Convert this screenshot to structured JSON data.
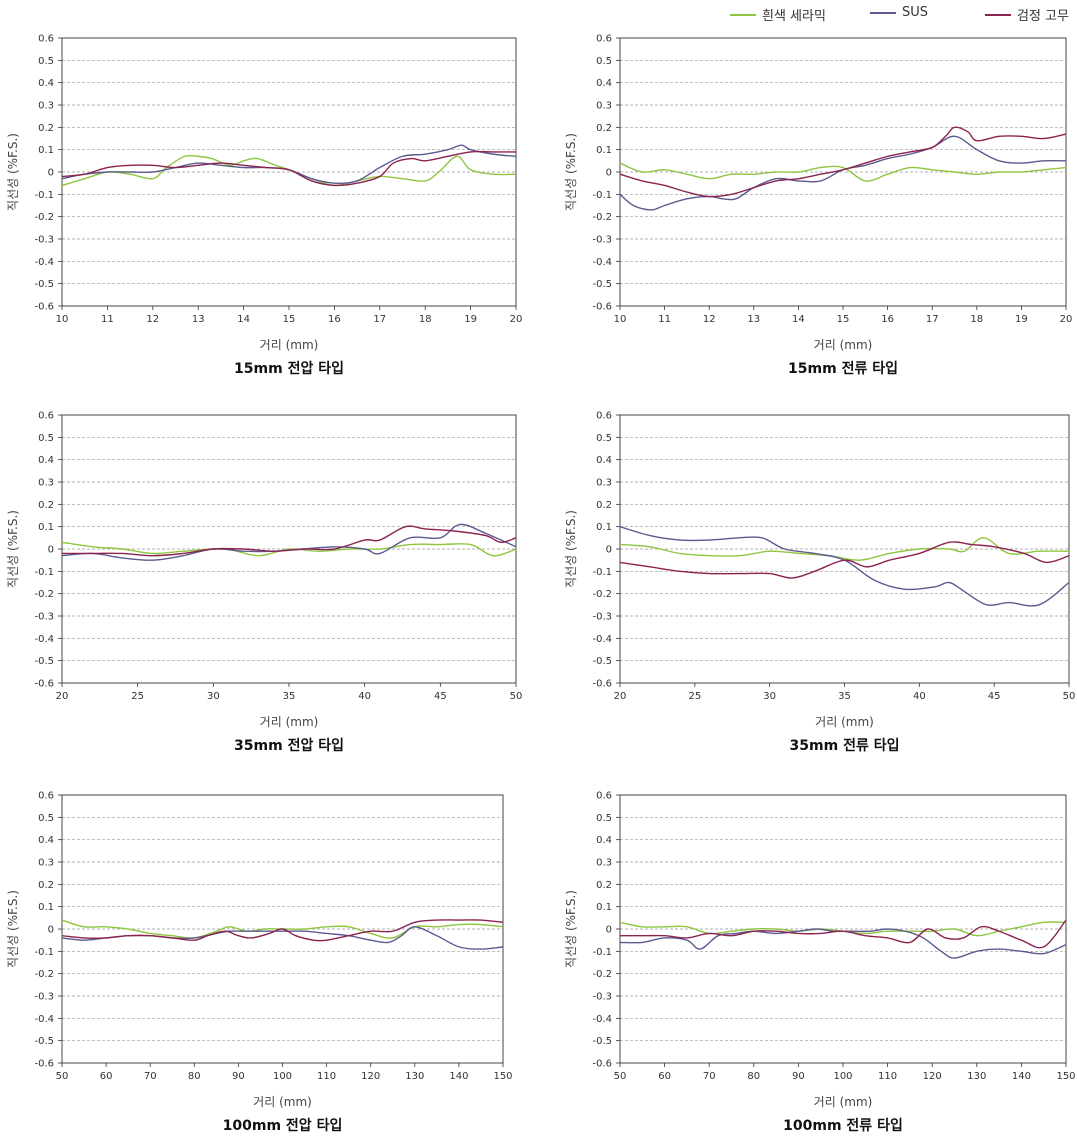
{
  "legend": [
    {
      "name": "흰색 세라믹",
      "color": "#8dc63f"
    },
    {
      "name": "SUS",
      "color": "#5c5a8f"
    },
    {
      "name": "검정 고무",
      "color": "#8b2252"
    }
  ],
  "colors": {
    "ceramic": "#8dc63f",
    "sus": "#5c5a8f",
    "rubber": "#8b2252",
    "grid": "#999999"
  },
  "chart_data": [
    {
      "type": "line",
      "title": "15mm 전압 타입",
      "xlabel": "거리 (mm)",
      "ylabel": "직선성 (%F.S.)",
      "xlim": [
        10,
        20
      ],
      "ylim": [
        -0.6,
        0.6
      ],
      "xticks": [
        "10",
        "11",
        "12",
        "13",
        "14",
        "15",
        "16",
        "17",
        "18",
        "19",
        "20"
      ],
      "yticks": [
        "0.6",
        "0.5",
        "0.4",
        "0.3",
        "0.2",
        "0.1",
        "0",
        "-0.1",
        "-0.2",
        "-0.3",
        "-0.4",
        "-0.5",
        "-0.6"
      ],
      "grid": true,
      "series": [
        {
          "name": "흰색 세라믹",
          "x": [
            10,
            10.5,
            11,
            11.5,
            12,
            12.3,
            12.7,
            13,
            13.3,
            13.7,
            14,
            14.3,
            14.7,
            15,
            15.5,
            16,
            16.5,
            17,
            17.5,
            18,
            18.3,
            18.7,
            19,
            19.5,
            20
          ],
          "y": [
            -0.06,
            -0.03,
            0.0,
            -0.01,
            -0.03,
            0.02,
            0.07,
            0.07,
            0.06,
            0.03,
            0.05,
            0.06,
            0.03,
            0.01,
            -0.03,
            -0.06,
            -0.04,
            -0.02,
            -0.03,
            -0.04,
            0.0,
            0.07,
            0.01,
            -0.01,
            -0.01
          ]
        },
        {
          "name": "SUS",
          "x": [
            10,
            10.5,
            11,
            11.5,
            12,
            12.5,
            13,
            13.5,
            14,
            14.5,
            15,
            15.5,
            16,
            16.5,
            17,
            17.5,
            18,
            18.5,
            18.8,
            19,
            19.5,
            20
          ],
          "y": [
            -0.03,
            -0.01,
            0.0,
            0.0,
            0.0,
            0.02,
            0.04,
            0.03,
            0.02,
            0.02,
            0.01,
            -0.03,
            -0.05,
            -0.04,
            0.02,
            0.07,
            0.08,
            0.1,
            0.12,
            0.1,
            0.08,
            0.07
          ]
        },
        {
          "name": "검정 고무",
          "x": [
            10,
            10.5,
            11,
            11.5,
            12,
            12.5,
            13,
            13.5,
            14,
            14.5,
            15,
            15.5,
            16,
            16.5,
            17,
            17.3,
            17.7,
            18,
            18.5,
            19,
            19.5,
            20
          ],
          "y": [
            -0.02,
            -0.01,
            0.02,
            0.03,
            0.03,
            0.02,
            0.03,
            0.04,
            0.03,
            0.02,
            0.01,
            -0.04,
            -0.06,
            -0.05,
            -0.02,
            0.04,
            0.06,
            0.05,
            0.07,
            0.09,
            0.09,
            0.09
          ]
        }
      ]
    },
    {
      "type": "line",
      "title": "15mm 전류 타입",
      "xlabel": "거리 (mm)",
      "ylabel": "직선성 (%F.S.)",
      "xlim": [
        10,
        20
      ],
      "ylim": [
        -0.6,
        0.6
      ],
      "xticks": [
        "10",
        "11",
        "12",
        "13",
        "14",
        "15",
        "16",
        "17",
        "18",
        "19",
        "20"
      ],
      "yticks": [
        "0.6",
        "0.5",
        "0.4",
        "0.3",
        "0.2",
        "0.1",
        "0",
        "-0.1",
        "-0.2",
        "-0.3",
        "-0.4",
        "-0.5",
        "-0.6"
      ],
      "grid": true,
      "series": [
        {
          "name": "흰색 세라믹",
          "x": [
            10,
            10.5,
            11,
            11.5,
            12,
            12.5,
            13,
            13.5,
            14,
            14.5,
            15,
            15.5,
            16,
            16.5,
            17,
            17.5,
            18,
            18.5,
            19,
            19.5,
            20
          ],
          "y": [
            0.04,
            0.0,
            0.01,
            -0.01,
            -0.03,
            -0.01,
            -0.01,
            0.0,
            0.0,
            0.02,
            0.02,
            -0.04,
            -0.01,
            0.02,
            0.01,
            0.0,
            -0.01,
            0.0,
            0.0,
            0.01,
            0.02
          ]
        },
        {
          "name": "SUS",
          "x": [
            10,
            10.3,
            10.7,
            11,
            11.5,
            12,
            12.3,
            12.6,
            13,
            13.5,
            14,
            14.5,
            15,
            15.5,
            16,
            16.5,
            17,
            17.5,
            18,
            18.5,
            19,
            19.5,
            20
          ],
          "y": [
            -0.1,
            -0.15,
            -0.17,
            -0.15,
            -0.12,
            -0.11,
            -0.12,
            -0.12,
            -0.07,
            -0.03,
            -0.04,
            -0.04,
            0.01,
            0.03,
            0.06,
            0.08,
            0.11,
            0.16,
            0.1,
            0.05,
            0.04,
            0.05,
            0.05
          ]
        },
        {
          "name": "검정 고무",
          "x": [
            10,
            10.5,
            11,
            11.5,
            12,
            12.5,
            13,
            13.5,
            14,
            14.5,
            15,
            15.5,
            16,
            16.5,
            17,
            17.3,
            17.5,
            17.8,
            18,
            18.5,
            19,
            19.5,
            20
          ],
          "y": [
            -0.01,
            -0.04,
            -0.06,
            -0.09,
            -0.11,
            -0.1,
            -0.07,
            -0.04,
            -0.03,
            -0.01,
            0.01,
            0.04,
            0.07,
            0.09,
            0.11,
            0.16,
            0.2,
            0.18,
            0.14,
            0.16,
            0.16,
            0.15,
            0.17
          ]
        }
      ]
    },
    {
      "type": "line",
      "title": "35mm 전압 타입",
      "xlabel": "거리 (mm)",
      "ylabel": "직선성 (%F.S.)",
      "xlim": [
        20,
        50
      ],
      "ylim": [
        -0.6,
        0.6
      ],
      "xticks": [
        "20",
        "25",
        "30",
        "35",
        "40",
        "45",
        "50"
      ],
      "yticks": [
        "0.6",
        "0.5",
        "0.4",
        "0.3",
        "0.2",
        "0.1",
        "0",
        "-0.1",
        "-0.2",
        "-0.3",
        "-0.4",
        "-0.5",
        "-0.6"
      ],
      "grid": true,
      "series": [
        {
          "name": "흰색 세라믹",
          "x": [
            20,
            22,
            24,
            26,
            28,
            30,
            31,
            33,
            35,
            37,
            39,
            41,
            43,
            45,
            47,
            48.5,
            50
          ],
          "y": [
            0.03,
            0.01,
            0.0,
            -0.02,
            -0.01,
            0.0,
            0.0,
            -0.03,
            0.0,
            -0.01,
            0.0,
            0.0,
            0.02,
            0.02,
            0.02,
            -0.03,
            0.0
          ]
        },
        {
          "name": "SUS",
          "x": [
            20,
            22,
            24,
            26,
            28,
            30,
            32,
            34,
            36,
            38,
            40,
            41,
            43,
            45,
            46.3,
            48,
            50
          ],
          "y": [
            -0.03,
            -0.02,
            -0.04,
            -0.05,
            -0.03,
            0.0,
            -0.01,
            -0.01,
            0.0,
            0.01,
            0.0,
            -0.02,
            0.05,
            0.05,
            0.11,
            0.07,
            0.01
          ]
        },
        {
          "name": "검정 고무",
          "x": [
            20,
            22,
            24,
            26,
            28,
            30,
            32,
            34,
            36,
            38,
            40,
            41,
            42.7,
            44,
            46,
            48,
            49,
            50
          ],
          "y": [
            -0.02,
            -0.02,
            -0.02,
            -0.03,
            -0.02,
            0.0,
            0.0,
            -0.01,
            0.0,
            0.0,
            0.04,
            0.04,
            0.1,
            0.09,
            0.08,
            0.06,
            0.03,
            0.05
          ]
        }
      ]
    },
    {
      "type": "line",
      "title": "35mm 전류 타입",
      "xlabel": "거리 (mm)",
      "ylabel": "직선성 (%F.S.)",
      "xlim": [
        20,
        50
      ],
      "ylim": [
        -0.6,
        0.6
      ],
      "xticks": [
        "20",
        "25",
        "30",
        "35",
        "40",
        "45",
        "50"
      ],
      "yticks": [
        "0.6",
        "0.5",
        "0.4",
        "0.3",
        "0.2",
        "0.1",
        "0",
        "-0.1",
        "-0.2",
        "-0.3",
        "-0.4",
        "-0.5",
        "-0.6"
      ],
      "grid": true,
      "series": [
        {
          "name": "흰색 세라믹",
          "x": [
            20,
            22,
            24,
            26,
            28,
            30,
            32,
            34,
            36,
            38,
            40,
            42,
            43,
            44.3,
            46,
            48,
            50
          ],
          "y": [
            0.02,
            0.01,
            -0.02,
            -0.03,
            -0.03,
            -0.01,
            -0.02,
            -0.03,
            -0.05,
            -0.02,
            0.0,
            0.0,
            -0.01,
            0.05,
            -0.02,
            -0.01,
            -0.01
          ]
        },
        {
          "name": "SUS",
          "x": [
            20,
            22,
            24,
            26,
            28,
            29.5,
            31,
            33,
            35,
            37,
            39,
            41,
            42,
            43,
            44.5,
            46,
            48,
            50
          ],
          "y": [
            0.1,
            0.06,
            0.04,
            0.04,
            0.05,
            0.05,
            0.0,
            -0.02,
            -0.05,
            -0.14,
            -0.18,
            -0.17,
            -0.15,
            -0.19,
            -0.25,
            -0.24,
            -0.25,
            -0.15
          ]
        },
        {
          "name": "검정 고무",
          "x": [
            20,
            22,
            24,
            26,
            28,
            30,
            31.5,
            33,
            35,
            36.5,
            38,
            40,
            42,
            43.5,
            45,
            47,
            48.5,
            50
          ],
          "y": [
            -0.06,
            -0.08,
            -0.1,
            -0.11,
            -0.11,
            -0.11,
            -0.13,
            -0.1,
            -0.05,
            -0.08,
            -0.05,
            -0.02,
            0.03,
            0.02,
            0.01,
            -0.02,
            -0.06,
            -0.03
          ]
        }
      ]
    },
    {
      "type": "line",
      "title": "100mm 전압 타입",
      "xlabel": "거리 (mm)",
      "ylabel": "직선성 (%F.S.)",
      "xlim": [
        50,
        150
      ],
      "ylim": [
        -0.6,
        0.6
      ],
      "xticks": [
        "50",
        "60",
        "70",
        "80",
        "90",
        "100",
        "110",
        "120",
        "130",
        "140",
        "150"
      ],
      "yticks": [
        "0.6",
        "0.5",
        "0.4",
        "0.3",
        "0.2",
        "0.1",
        "0",
        "-0.1",
        "-0.2",
        "-0.3",
        "-0.4",
        "-0.5",
        "-0.6"
      ],
      "grid": true,
      "series": [
        {
          "name": "흰색 세라믹",
          "x": [
            50,
            55,
            60,
            65,
            70,
            75,
            80,
            85,
            88,
            92,
            96,
            100,
            105,
            110,
            115,
            120,
            125,
            130,
            135,
            140,
            145,
            150
          ],
          "y": [
            0.04,
            0.01,
            0.01,
            0.0,
            -0.02,
            -0.03,
            -0.04,
            -0.01,
            0.01,
            -0.01,
            0.0,
            0.0,
            0.0,
            0.01,
            0.01,
            -0.02,
            -0.04,
            0.01,
            0.01,
            0.02,
            0.02,
            0.01
          ]
        },
        {
          "name": "SUS",
          "x": [
            50,
            55,
            60,
            65,
            70,
            75,
            80,
            85,
            88,
            92,
            96,
            100,
            105,
            110,
            115,
            120,
            124,
            127,
            130,
            135,
            140,
            145,
            150
          ],
          "y": [
            -0.04,
            -0.05,
            -0.04,
            -0.03,
            -0.03,
            -0.04,
            -0.04,
            -0.02,
            -0.01,
            -0.01,
            -0.01,
            -0.01,
            -0.01,
            -0.02,
            -0.03,
            -0.05,
            -0.06,
            -0.03,
            0.01,
            -0.03,
            -0.08,
            -0.09,
            -0.08
          ]
        },
        {
          "name": "검정 고무",
          "x": [
            50,
            55,
            60,
            65,
            70,
            75,
            80,
            83,
            87,
            90,
            93,
            97,
            100,
            103,
            107,
            110,
            115,
            120,
            125,
            130,
            135,
            140,
            145,
            150
          ],
          "y": [
            -0.03,
            -0.04,
            -0.04,
            -0.03,
            -0.03,
            -0.04,
            -0.05,
            -0.03,
            -0.01,
            -0.03,
            -0.04,
            -0.02,
            0.0,
            -0.03,
            -0.05,
            -0.05,
            -0.03,
            -0.01,
            -0.01,
            0.03,
            0.04,
            0.04,
            0.04,
            0.03
          ]
        }
      ]
    },
    {
      "type": "line",
      "title": "100mm 전류 타입",
      "xlabel": "거리 (mm)",
      "ylabel": "직선성 (%F.S.)",
      "xlim": [
        50,
        150
      ],
      "ylim": [
        -0.6,
        0.6
      ],
      "xticks": [
        "50",
        "60",
        "70",
        "80",
        "90",
        "100",
        "110",
        "120",
        "130",
        "140",
        "150"
      ],
      "yticks": [
        "0.6",
        "0.5",
        "0.4",
        "0.3",
        "0.2",
        "0.1",
        "0",
        "-0.1",
        "-0.2",
        "-0.3",
        "-0.4",
        "-0.5",
        "-0.6"
      ],
      "grid": true,
      "series": [
        {
          "name": "흰색 세라믹",
          "x": [
            50,
            55,
            60,
            65,
            70,
            75,
            80,
            85,
            90,
            95,
            100,
            105,
            110,
            115,
            120,
            125,
            130,
            135,
            140,
            145,
            150
          ],
          "y": [
            0.03,
            0.01,
            0.01,
            0.01,
            -0.02,
            -0.01,
            0.0,
            0.0,
            -0.01,
            0.0,
            -0.01,
            -0.02,
            -0.01,
            -0.01,
            -0.01,
            0.0,
            -0.03,
            -0.01,
            0.01,
            0.03,
            0.03
          ]
        },
        {
          "name": "SUS",
          "x": [
            50,
            55,
            60,
            65,
            68,
            72,
            76,
            80,
            85,
            90,
            94,
            98,
            102,
            106,
            110,
            114,
            118,
            122,
            125,
            130,
            135,
            140,
            145,
            150
          ],
          "y": [
            -0.06,
            -0.06,
            -0.04,
            -0.05,
            -0.09,
            -0.03,
            -0.02,
            -0.01,
            -0.02,
            -0.01,
            0.0,
            -0.01,
            -0.01,
            -0.01,
            0.0,
            -0.01,
            -0.04,
            -0.1,
            -0.13,
            -0.1,
            -0.09,
            -0.1,
            -0.11,
            -0.07
          ]
        },
        {
          "name": "검정 고무",
          "x": [
            50,
            55,
            60,
            65,
            70,
            75,
            80,
            85,
            90,
            95,
            100,
            105,
            110,
            115,
            119,
            123,
            127,
            131,
            135,
            140,
            145,
            150
          ],
          "y": [
            -0.03,
            -0.03,
            -0.03,
            -0.04,
            -0.02,
            -0.03,
            -0.01,
            -0.01,
            -0.02,
            -0.02,
            -0.01,
            -0.03,
            -0.04,
            -0.06,
            0.0,
            -0.04,
            -0.04,
            0.01,
            -0.01,
            -0.05,
            -0.08,
            0.04
          ]
        }
      ]
    }
  ]
}
